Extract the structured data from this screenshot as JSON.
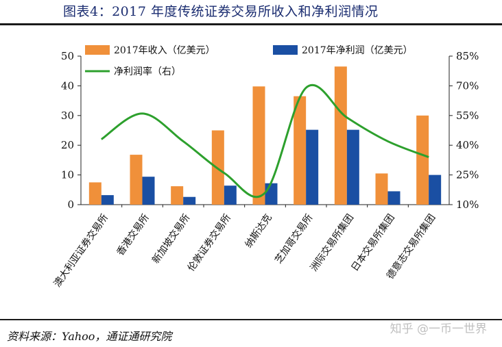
{
  "header": {
    "title": "图表4：2017 年度传统证券交易所收入和净利润情况"
  },
  "footer": {
    "source": "资料来源：Yahoo，通证通研究院",
    "watermark": "知乎 @一币一世界"
  },
  "colors": {
    "revenue": "#F0903A",
    "profit": "#1A4FA3",
    "margin": "#2DA02D"
  },
  "chart_data": {
    "type": "bar",
    "categories": [
      "澳大利亚证券交易所",
      "香港交易所",
      "新加坡交易所",
      "伦敦证券交易所",
      "纳斯达克",
      "芝加哥交易所",
      "洲际交易所集团",
      "日本交易所集团",
      "德意志交易所集团"
    ],
    "series": [
      {
        "name": "2017年收入（亿美元）",
        "type": "bar",
        "axis": "left",
        "values": [
          7.5,
          16.8,
          6.2,
          25.0,
          39.8,
          36.5,
          46.5,
          10.5,
          30.0
        ]
      },
      {
        "name": "2017年净利润（亿美元）",
        "type": "bar",
        "axis": "left",
        "values": [
          3.2,
          9.4,
          2.6,
          6.4,
          7.2,
          25.2,
          25.2,
          4.5,
          10.0
        ]
      },
      {
        "name": "净利润率（右）",
        "type": "line",
        "axis": "right",
        "values": [
          0.43,
          0.56,
          0.42,
          0.26,
          0.16,
          0.69,
          0.54,
          0.42,
          0.34
        ]
      }
    ],
    "y_left": {
      "min": 0,
      "max": 50,
      "ticks": [
        "0",
        "10",
        "20",
        "30",
        "40",
        "50"
      ]
    },
    "y_right": {
      "min": 0.1,
      "max": 0.85,
      "ticks": [
        "10%",
        "25%",
        "40%",
        "55%",
        "70%",
        "85%"
      ]
    },
    "legend_position": "top"
  }
}
